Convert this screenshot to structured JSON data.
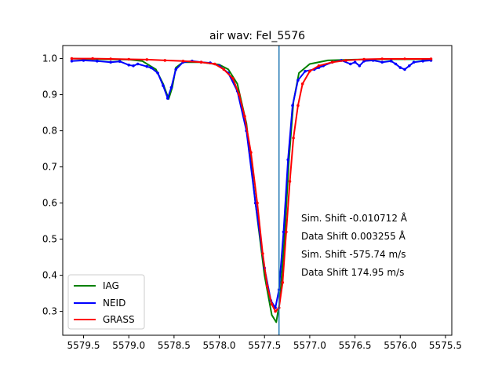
{
  "chart_data": {
    "type": "line",
    "title": "air wav: FeI_5576",
    "xlabel": "",
    "ylabel": "",
    "x_inverted": true,
    "xlim": [
      5579.73,
      5575.43
    ],
    "ylim": [
      0.234,
      1.036
    ],
    "xticks": [
      {
        "value": 5579.5,
        "label": "5579.5"
      },
      {
        "value": 5579.0,
        "label": "5579.0"
      },
      {
        "value": 5578.5,
        "label": "5578.5"
      },
      {
        "value": 5578.0,
        "label": "5578.0"
      },
      {
        "value": 5577.5,
        "label": "5577.5"
      },
      {
        "value": 5577.0,
        "label": "5577.0"
      },
      {
        "value": 5576.5,
        "label": "5576.5"
      },
      {
        "value": 5576.0,
        "label": "5576.0"
      },
      {
        "value": 5575.5,
        "label": "5575.5"
      }
    ],
    "yticks": [
      {
        "value": 0.3,
        "label": "0.3"
      },
      {
        "value": 0.4,
        "label": "0.4"
      },
      {
        "value": 0.5,
        "label": "0.5"
      },
      {
        "value": 0.6,
        "label": "0.6"
      },
      {
        "value": 0.7,
        "label": "0.7"
      },
      {
        "value": 0.8,
        "label": "0.8"
      },
      {
        "value": 0.9,
        "label": "0.9"
      },
      {
        "value": 1.0,
        "label": "1.0"
      }
    ],
    "vline": {
      "x": 5577.34,
      "color": "#1f77b4"
    },
    "legend_position": "lower-left",
    "series": [
      {
        "name": "IAG",
        "color": "#008000",
        "markers": false,
        "points": [
          [
            5579.63,
            1.0
          ],
          [
            5579.3,
            0.998
          ],
          [
            5579.0,
            0.997
          ],
          [
            5578.85,
            0.993
          ],
          [
            5578.7,
            0.97
          ],
          [
            5578.62,
            0.93
          ],
          [
            5578.56,
            0.888
          ],
          [
            5578.52,
            0.92
          ],
          [
            5578.48,
            0.975
          ],
          [
            5578.4,
            0.99
          ],
          [
            5578.2,
            0.99
          ],
          [
            5578.0,
            0.983
          ],
          [
            5577.9,
            0.97
          ],
          [
            5577.8,
            0.93
          ],
          [
            5577.7,
            0.82
          ],
          [
            5577.6,
            0.6
          ],
          [
            5577.5,
            0.4
          ],
          [
            5577.42,
            0.29
          ],
          [
            5577.37,
            0.27
          ],
          [
            5577.33,
            0.33
          ],
          [
            5577.28,
            0.5
          ],
          [
            5577.23,
            0.72
          ],
          [
            5577.18,
            0.88
          ],
          [
            5577.12,
            0.96
          ],
          [
            5577.0,
            0.985
          ],
          [
            5576.8,
            0.995
          ],
          [
            5576.5,
            0.997
          ],
          [
            5576.2,
            0.998
          ],
          [
            5575.9,
            0.998
          ],
          [
            5575.66,
            0.998
          ]
        ]
      },
      {
        "name": "NEID",
        "color": "#0000ff",
        "markers": true,
        "points": [
          [
            5579.63,
            0.993
          ],
          [
            5579.5,
            0.995
          ],
          [
            5579.35,
            0.993
          ],
          [
            5579.2,
            0.99
          ],
          [
            5579.1,
            0.992
          ],
          [
            5579.0,
            0.982
          ],
          [
            5578.95,
            0.98
          ],
          [
            5578.9,
            0.985
          ],
          [
            5578.8,
            0.978
          ],
          [
            5578.75,
            0.974
          ],
          [
            5578.68,
            0.96
          ],
          [
            5578.62,
            0.925
          ],
          [
            5578.57,
            0.89
          ],
          [
            5578.53,
            0.92
          ],
          [
            5578.48,
            0.97
          ],
          [
            5578.4,
            0.99
          ],
          [
            5578.3,
            0.993
          ],
          [
            5578.2,
            0.99
          ],
          [
            5578.1,
            0.988
          ],
          [
            5578.0,
            0.98
          ],
          [
            5577.9,
            0.96
          ],
          [
            5577.8,
            0.91
          ],
          [
            5577.7,
            0.8
          ],
          [
            5577.6,
            0.6
          ],
          [
            5577.5,
            0.42
          ],
          [
            5577.43,
            0.33
          ],
          [
            5577.38,
            0.31
          ],
          [
            5577.34,
            0.36
          ],
          [
            5577.29,
            0.52
          ],
          [
            5577.24,
            0.72
          ],
          [
            5577.19,
            0.87
          ],
          [
            5577.13,
            0.94
          ],
          [
            5577.05,
            0.965
          ],
          [
            5576.95,
            0.97
          ],
          [
            5576.9,
            0.975
          ],
          [
            5576.85,
            0.98
          ],
          [
            5576.75,
            0.99
          ],
          [
            5576.65,
            0.995
          ],
          [
            5576.55,
            0.985
          ],
          [
            5576.5,
            0.99
          ],
          [
            5576.45,
            0.98
          ],
          [
            5576.4,
            0.993
          ],
          [
            5576.3,
            0.995
          ],
          [
            5576.2,
            0.99
          ],
          [
            5576.1,
            0.993
          ],
          [
            5576.05,
            0.985
          ],
          [
            5576.0,
            0.975
          ],
          [
            5575.95,
            0.97
          ],
          [
            5575.9,
            0.98
          ],
          [
            5575.85,
            0.99
          ],
          [
            5575.75,
            0.993
          ],
          [
            5575.66,
            0.995
          ]
        ]
      },
      {
        "name": "GRASS",
        "color": "#ff0000",
        "markers": true,
        "points": [
          [
            5579.63,
            1.0
          ],
          [
            5579.4,
            1.0
          ],
          [
            5579.2,
            0.999
          ],
          [
            5579.0,
            0.998
          ],
          [
            5578.8,
            0.997
          ],
          [
            5578.6,
            0.995
          ],
          [
            5578.4,
            0.993
          ],
          [
            5578.2,
            0.99
          ],
          [
            5578.05,
            0.985
          ],
          [
            5577.95,
            0.97
          ],
          [
            5577.85,
            0.945
          ],
          [
            5577.78,
            0.9
          ],
          [
            5577.72,
            0.84
          ],
          [
            5577.65,
            0.74
          ],
          [
            5577.58,
            0.6
          ],
          [
            5577.52,
            0.46
          ],
          [
            5577.47,
            0.37
          ],
          [
            5577.42,
            0.32
          ],
          [
            5577.38,
            0.3
          ],
          [
            5577.34,
            0.31
          ],
          [
            5577.3,
            0.38
          ],
          [
            5577.26,
            0.52
          ],
          [
            5577.22,
            0.66
          ],
          [
            5577.18,
            0.78
          ],
          [
            5577.13,
            0.87
          ],
          [
            5577.08,
            0.93
          ],
          [
            5577.0,
            0.965
          ],
          [
            5576.9,
            0.98
          ],
          [
            5576.75,
            0.99
          ],
          [
            5576.6,
            0.995
          ],
          [
            5576.4,
            0.998
          ],
          [
            5576.2,
            0.999
          ],
          [
            5575.95,
            0.999
          ],
          [
            5575.66,
            0.999
          ]
        ]
      }
    ],
    "annotations": [
      "Sim. Shift -0.010712 Å",
      "Data Shift 0.003255 Å",
      "Sim. Shift -575.74 m/s",
      "Data Shift 174.95 m/s"
    ]
  }
}
